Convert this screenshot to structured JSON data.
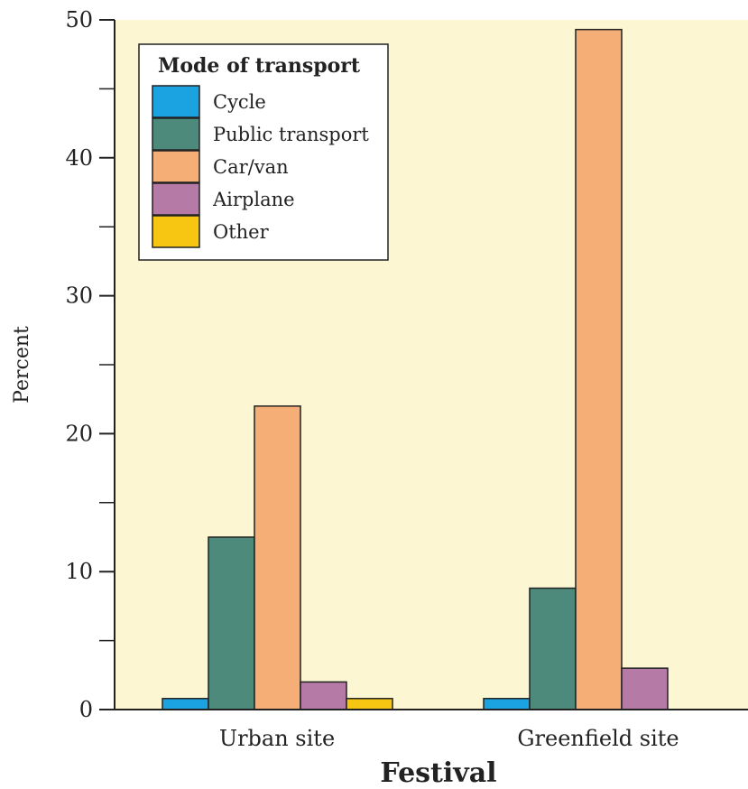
{
  "chart_data": {
    "type": "bar",
    "xlabel": "Festival",
    "ylabel": "Percent",
    "ylim": [
      0,
      50
    ],
    "yticks_major": [
      0,
      10,
      20,
      30,
      40,
      50
    ],
    "yticks_minor": [
      5,
      15,
      25,
      35,
      45
    ],
    "categories": [
      "Urban site",
      "Greenfield site"
    ],
    "legend": {
      "title": "Mode of transport",
      "placement": "top-left"
    },
    "series": [
      {
        "name": "Cycle",
        "color": "#1aa3e0",
        "values": [
          0.8,
          0.8
        ]
      },
      {
        "name": "Public transport",
        "color": "#4d8a7c",
        "values": [
          12.5,
          8.8
        ]
      },
      {
        "name": "Car/van",
        "color": "#f4ae76",
        "values": [
          22.0,
          49.3
        ]
      },
      {
        "name": "Airplane",
        "color": "#b57aa5",
        "values": [
          2.0,
          3.0
        ]
      },
      {
        "name": "Other",
        "color": "#f7c613",
        "values": [
          0.8,
          0
        ]
      }
    ],
    "plot_background": "#fdf6d3",
    "grid": false
  }
}
